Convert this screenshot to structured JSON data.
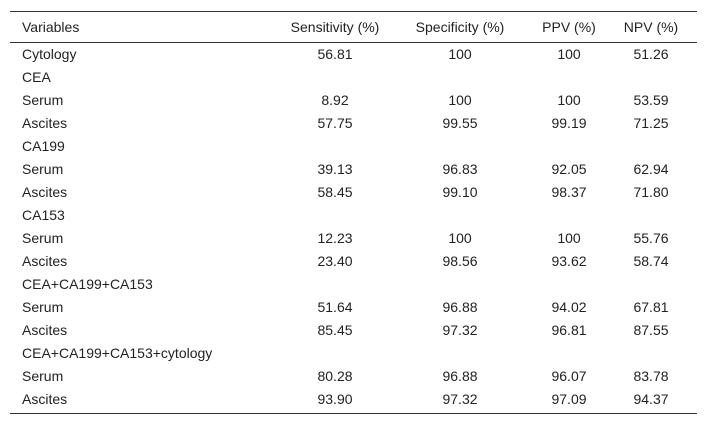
{
  "table": {
    "header": [
      "Variables",
      "Sensitivity (%)",
      "Specificity (%)",
      "PPV (%)",
      "NPV (%)"
    ],
    "rows": [
      [
        "Cytology",
        "56.81",
        "100",
        "100",
        "51.26"
      ],
      [
        "CEA"
      ],
      [
        "Serum",
        "8.92",
        "100",
        "100",
        "53.59"
      ],
      [
        "Ascites",
        "57.75",
        "99.55",
        "99.19",
        "71.25"
      ],
      [
        "CA199"
      ],
      [
        "Serum",
        "39.13",
        "96.83",
        "92.05",
        "62.94"
      ],
      [
        "Ascites",
        "58.45",
        "99.10",
        "98.37",
        "71.80"
      ],
      [
        "CA153"
      ],
      [
        "Serum",
        "12.23",
        "100",
        "100",
        "55.76"
      ],
      [
        "Ascites",
        "23.40",
        "98.56",
        "93.62",
        "58.74"
      ],
      [
        "CEA+CA199+CA153"
      ],
      [
        "Serum",
        "51.64",
        "96.88",
        "94.02",
        "67.81"
      ],
      [
        "Ascites",
        "85.45",
        "97.32",
        "96.81",
        "87.55"
      ],
      [
        "CEA+CA199+CA153+cytology"
      ],
      [
        "Serum",
        "80.28",
        "96.88",
        "96.07",
        "83.78"
      ],
      [
        "Ascites",
        "93.90",
        "97.32",
        "97.09",
        "94.37"
      ]
    ]
  }
}
